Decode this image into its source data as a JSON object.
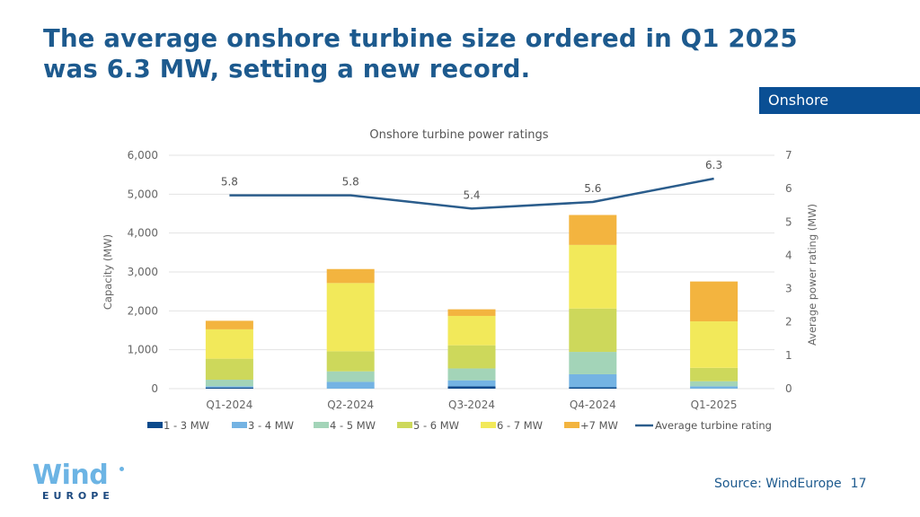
{
  "headline": {
    "line1": "The average onshore turbine size ordered in Q1 2025",
    "line2": "was 6.3 MW, setting a new record."
  },
  "section_tab": "Onshore",
  "logo": {
    "wind": "Wind",
    "europe": "EUROPE"
  },
  "footer": {
    "source": "Source: WindEurope",
    "page_number": "17"
  },
  "colors": {
    "headline": "#1d5a8e",
    "tab_bg": "#0a4f94",
    "line": "#2b5d8c"
  },
  "chart_data": {
    "type": "bar",
    "stacked": true,
    "title": "Onshore turbine power ratings",
    "xlabel": "",
    "ylabel": "Capacity (MW)",
    "y2label": "Average power rating (MW)",
    "categories": [
      "Q1-2024",
      "Q2-2024",
      "Q3-2024",
      "Q4-2024",
      "Q1-2025"
    ],
    "ylim": [
      0,
      6000
    ],
    "yticks": [
      0,
      1000,
      2000,
      3000,
      4000,
      5000,
      6000
    ],
    "ytick_labels": [
      "0",
      "1,000",
      "2,000",
      "3,000",
      "4,000",
      "5,000",
      "6,000"
    ],
    "y2lim": [
      0,
      7
    ],
    "y2ticks": [
      0,
      1,
      2,
      3,
      4,
      5,
      6,
      7
    ],
    "y2tick_labels": [
      "0",
      "1",
      "2",
      "3",
      "4",
      "5",
      "6",
      "7"
    ],
    "grid": true,
    "legend_position": "bottom",
    "series": [
      {
        "name": "1 - 3 MW",
        "color": "#0b4a8c",
        "values": [
          30,
          0,
          60,
          35,
          0
        ]
      },
      {
        "name": "3 - 4 MW",
        "color": "#74b3e3",
        "values": [
          30,
          175,
          155,
          335,
          60
        ]
      },
      {
        "name": "4 - 5 MW",
        "color": "#a3d4b8",
        "values": [
          170,
          270,
          305,
          575,
          130
        ]
      },
      {
        "name": "5 - 6 MW",
        "color": "#cdd85b",
        "values": [
          540,
          515,
          595,
          1115,
          345
        ]
      },
      {
        "name": "6 - 7 MW",
        "color": "#f2e95a",
        "values": [
          755,
          1755,
          755,
          1635,
          1195
        ]
      },
      {
        "name": "+7 MW",
        "color": "#f3b43f",
        "values": [
          220,
          360,
          170,
          770,
          1025
        ]
      }
    ],
    "line_series": {
      "name": "Average turbine rating",
      "axis": "secondary",
      "color": "#2b5d8c",
      "values": [
        5.8,
        5.8,
        5.4,
        5.6,
        6.3
      ],
      "labels": [
        "5.8",
        "5.8",
        "5.4",
        "5.6",
        "6.3"
      ]
    }
  }
}
